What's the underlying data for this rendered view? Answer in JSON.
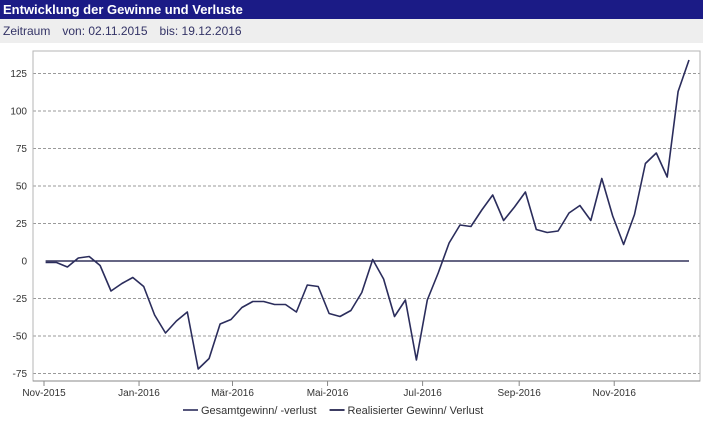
{
  "header": {
    "title": "Entwicklung der Gewinne und Verluste",
    "period_label": "Zeitraum",
    "from": "von: 02.11.2015",
    "to": "bis: 19.12.2016"
  },
  "colors": {
    "title_bar": "#1b1b86",
    "series_total": "#2b2d5c",
    "series_realized": "#0b0b3a"
  },
  "chart_data": {
    "type": "line",
    "title": "",
    "xlabel": "",
    "ylabel": "",
    "ylim": [
      -80,
      140
    ],
    "yticks": [
      125,
      100,
      75,
      50,
      25,
      0,
      -25,
      -50,
      -75
    ],
    "ytick_labels": [
      "125",
      "100",
      "75",
      "50",
      "25",
      "0",
      "-25",
      "-50",
      "-75"
    ],
    "xlim": [
      "2015-11-01",
      "2016-12-19"
    ],
    "xticks": [
      "2015-11-01",
      "2016-01-01",
      "2016-03-01",
      "2016-05-01",
      "2016-07-01",
      "2016-09-01",
      "2016-11-01"
    ],
    "xtick_labels": [
      "Nov-2015",
      "Jan-2016",
      "Mär-2016",
      "Mai-2016",
      "Jul-2016",
      "Sep-2016",
      "Nov-2016"
    ],
    "grid": "horizontal dashed",
    "legend_position": "bottom-center",
    "series": [
      {
        "name": "Gesamtgewinn/ -verlust",
        "x": [
          "2015-11-02",
          "2015-11-09",
          "2015-11-16",
          "2015-11-23",
          "2015-11-30",
          "2015-12-07",
          "2015-12-14",
          "2015-12-21",
          "2015-12-28",
          "2016-01-04",
          "2016-01-11",
          "2016-01-18",
          "2016-01-25",
          "2016-02-01",
          "2016-02-08",
          "2016-02-15",
          "2016-02-22",
          "2016-02-29",
          "2016-03-07",
          "2016-03-14",
          "2016-03-21",
          "2016-03-28",
          "2016-04-04",
          "2016-04-11",
          "2016-04-18",
          "2016-04-25",
          "2016-05-02",
          "2016-05-09",
          "2016-05-16",
          "2016-05-23",
          "2016-05-30",
          "2016-06-06",
          "2016-06-13",
          "2016-06-20",
          "2016-06-27",
          "2016-07-04",
          "2016-07-11",
          "2016-07-18",
          "2016-07-25",
          "2016-08-01",
          "2016-08-08",
          "2016-08-15",
          "2016-08-22",
          "2016-08-29",
          "2016-09-05",
          "2016-09-12",
          "2016-09-19",
          "2016-09-26",
          "2016-10-03",
          "2016-10-10",
          "2016-10-17",
          "2016-10-24",
          "2016-10-31",
          "2016-11-07",
          "2016-11-14",
          "2016-11-21",
          "2016-11-28",
          "2016-12-05",
          "2016-12-12",
          "2016-12-19"
        ],
        "values": [
          -1,
          -1,
          -4,
          2,
          3,
          -3,
          -20,
          -15,
          -11,
          -17,
          -36,
          -48,
          -40,
          -34,
          -72,
          -65,
          -42,
          -39,
          -31,
          -27,
          -27,
          -29,
          -29,
          -34,
          -16,
          -17,
          -35,
          -37,
          -33,
          -21,
          1,
          -12,
          -37,
          -26,
          -66,
          -26,
          -8,
          12,
          24,
          23,
          34,
          44,
          27,
          36,
          46,
          21,
          19,
          20,
          32,
          37,
          27,
          55,
          30,
          11,
          31,
          65,
          72,
          56,
          113,
          134
        ]
      },
      {
        "name": "Realisierter Gewinn/ Verlust",
        "x": [
          "2015-11-02",
          "2016-12-19"
        ],
        "values": [
          0,
          0
        ]
      }
    ]
  }
}
